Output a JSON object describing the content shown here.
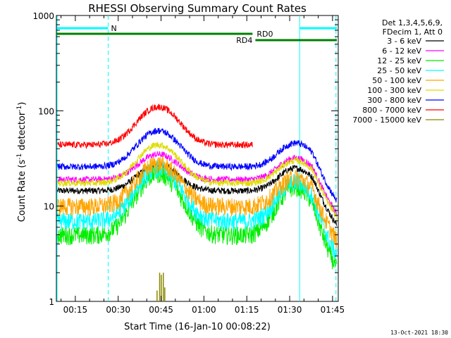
{
  "chart_data": {
    "type": "line",
    "title": "RHESSI Observing Summary Count Rates",
    "xlabel": "Start Time (16-Jan-10 00:08:22)",
    "ylabel_main": "Count Rate (s",
    "ylabel_sup1": "-1",
    "ylabel_mid": " detector",
    "ylabel_sup2": "-1",
    "ylabel_end": ")",
    "yscale": "log",
    "ylim": [
      1,
      1000
    ],
    "xlim_minutes": [
      8.37,
      107
    ],
    "x_ticks": [
      {
        "label": "00:15",
        "minute": 15
      },
      {
        "label": "00:30",
        "minute": 30
      },
      {
        "label": "00:45",
        "minute": 45
      },
      {
        "label": "01:00",
        "minute": 60
      },
      {
        "label": "01:15",
        "minute": 75
      },
      {
        "label": "01:30",
        "minute": 90
      },
      {
        "label": "01:45",
        "minute": 105
      }
    ],
    "y_ticks": [
      {
        "label": "1",
        "value": 1
      },
      {
        "label": "10",
        "value": 10
      },
      {
        "label": "100",
        "value": 100
      },
      {
        "label": "1000",
        "value": 1000
      }
    ],
    "legend_header": [
      "Det 1,3,4,5,6,9,",
      "FDecim 1, Att 0"
    ],
    "series": [
      {
        "name": "3 - 6 keV",
        "color": "#000000",
        "base": 14.5,
        "peak1": 27,
        "peak2": 25
      },
      {
        "name": "6 - 12 keV",
        "color": "#ff00ff",
        "base": 19,
        "peak1": 35,
        "peak2": 32
      },
      {
        "name": "12 - 25 keV",
        "color": "#00ee00",
        "base": 5,
        "peak1": 22,
        "peak2": 16
      },
      {
        "name": "25 - 50 keV",
        "color": "#00ffff",
        "base": 7,
        "peak1": 25,
        "peak2": 18
      },
      {
        "name": "50 - 100 keV",
        "color": "#ffa500",
        "base": 10,
        "peak1": 28,
        "peak2": 20
      },
      {
        "name": "100 - 300 keV",
        "color": "#dddd00",
        "base": 17.5,
        "peak1": 44,
        "peak2": 30
      },
      {
        "name": "300 - 800 keV",
        "color": "#0000ff",
        "base": 26,
        "peak1": 62,
        "peak2": 46
      },
      {
        "name": "800 - 7000 keV",
        "color": "#ff0000",
        "base": 44,
        "peak1": 110,
        "peak2": null
      },
      {
        "name": "7000 - 15000 keV",
        "color": "#888800",
        "base": null,
        "peak1": null,
        "peak2": null
      }
    ],
    "flags": [
      {
        "label": "N",
        "color": "#00ffff",
        "segments": [
          [
            8.6,
            26.5
          ],
          [
            93.5,
            106.5
          ]
        ]
      },
      {
        "label": "RD0",
        "color": "#008000",
        "segments": [
          [
            8.4,
            77
          ]
        ]
      },
      {
        "label": "RD4",
        "color": "#008000",
        "segments": [
          [
            78,
            106.5
          ]
        ]
      }
    ],
    "boundary_lines": [
      {
        "color": "#00ffff",
        "style": "dashed",
        "minute": 26.5
      },
      {
        "color": "#00ffff",
        "style": "solid",
        "minute": 93.5
      },
      {
        "color": "#00ffff",
        "style": "dashed",
        "minute": 106.2
      },
      {
        "color": "#00ffff",
        "style": "solid",
        "minute": 8.6
      }
    ],
    "footer_date": "13-Oct-2021 18:30"
  }
}
